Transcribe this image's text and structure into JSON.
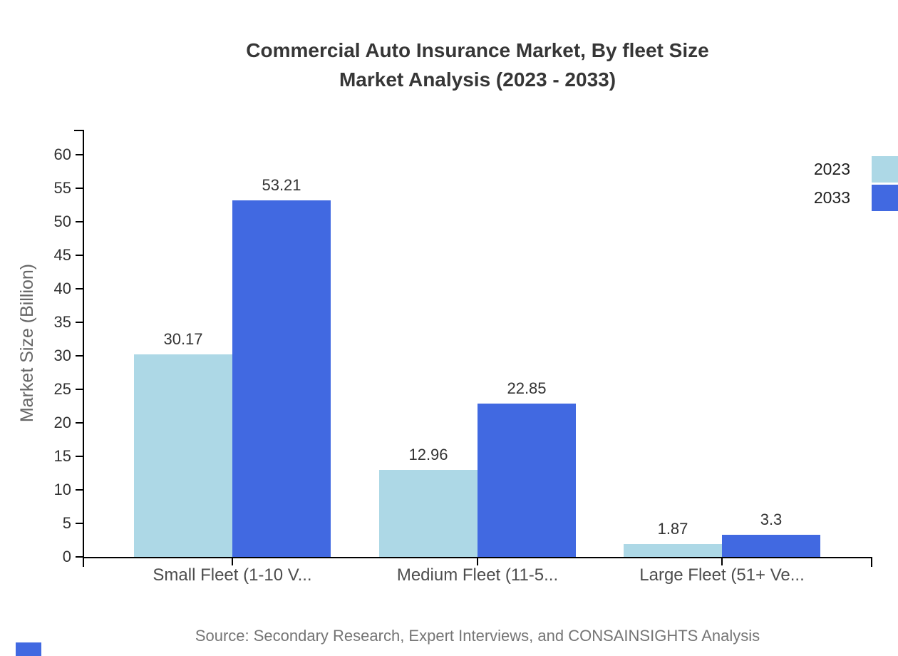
{
  "title": {
    "line1": "Commercial Auto Insurance Market, By fleet Size",
    "line2": "Market Analysis (2023 - 2033)"
  },
  "source": "Source: Secondary Research, Expert Interviews, and CONSAINSIGHTS Analysis",
  "colors": {
    "series_2023": "#ADD8E6",
    "series_2033": "#4169E1",
    "axis": "#000000",
    "brand_mark": "#4169E1"
  },
  "chart_data": {
    "type": "bar",
    "title": "Commercial Auto Insurance Market, By fleet Size Market Analysis (2023 - 2033)",
    "categories": [
      "Small Fleet (1-10 V...",
      "Medium Fleet (11-5...",
      "Large Fleet (51+ Ve..."
    ],
    "series": [
      {
        "name": "2023",
        "color": "#ADD8E6",
        "values": [
          30.17,
          12.96,
          1.87
        ]
      },
      {
        "name": "2033",
        "color": "#4169E1",
        "values": [
          53.21,
          22.85,
          3.3
        ]
      }
    ],
    "xlabel": "",
    "ylabel": "Market Size (Billion)",
    "ylim": [
      0,
      63.7
    ],
    "yticks": [
      0,
      5,
      10,
      15,
      20,
      25,
      30,
      35,
      40,
      45,
      50,
      55,
      60
    ],
    "grid": false,
    "legend_position": "top-right",
    "value_labels": [
      "30.17",
      "53.21",
      "12.96",
      "22.85",
      "1.87",
      "3.3"
    ]
  }
}
